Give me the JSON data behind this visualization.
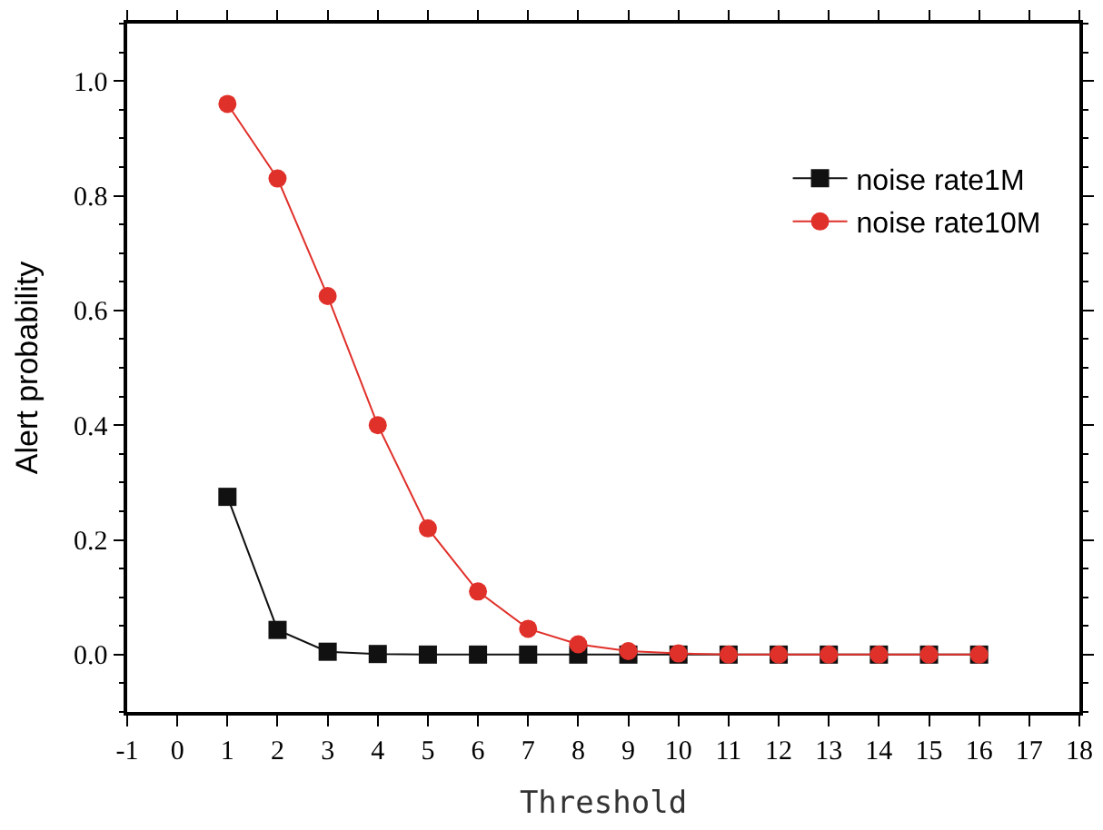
{
  "chart_data": {
    "type": "line",
    "xlabel": "Threshold",
    "ylabel": "Alert probability",
    "x": [
      1,
      2,
      3,
      4,
      5,
      6,
      7,
      8,
      9,
      10,
      11,
      12,
      13,
      14,
      15,
      16
    ],
    "series": [
      {
        "name": "noise rate1M",
        "color": "#111111",
        "marker": "square",
        "values": [
          0.275,
          0.043,
          0.005,
          0.001,
          0,
          0,
          0,
          0,
          0,
          0,
          0,
          0,
          0,
          0,
          0,
          0
        ]
      },
      {
        "name": "noise rate10M",
        "color": "#e0302a",
        "marker": "circle",
        "values": [
          0.96,
          0.83,
          0.625,
          0.4,
          0.22,
          0.11,
          0.045,
          0.018,
          0.006,
          0.002,
          0,
          0,
          0,
          0,
          0,
          0
        ]
      }
    ],
    "xlim": [
      -1,
      18
    ],
    "xticks": [
      -1,
      0,
      1,
      2,
      3,
      4,
      5,
      6,
      7,
      8,
      9,
      10,
      11,
      12,
      13,
      14,
      15,
      16,
      17,
      18
    ],
    "ylim": [
      -0.1,
      1.1
    ],
    "yticks": [
      {
        "value": 0,
        "label": "0.0"
      },
      0.2,
      0.4,
      0.6,
      0.8,
      {
        "value": 1,
        "label": "1.0"
      }
    ],
    "legend": "top right",
    "line_style": "solid"
  }
}
